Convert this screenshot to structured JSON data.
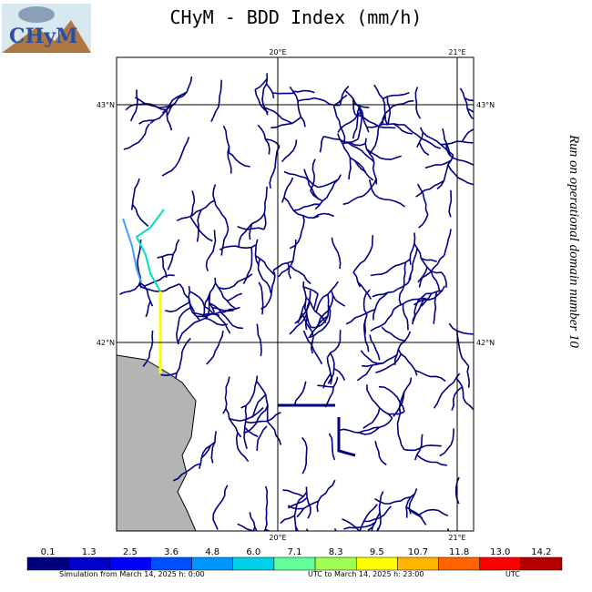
{
  "logo": {
    "text": "CHyM"
  },
  "title": "CHyM - BDD Index (mm/h)",
  "side_note": "Run on operational domain number 10",
  "map": {
    "top_labels": [
      "20°E",
      "21°E"
    ],
    "bottom_labels": [
      "20°E",
      "21°E"
    ],
    "left_labels": [
      "43°N",
      "42°N"
    ],
    "right_labels": [
      "43°N",
      "42°N"
    ]
  },
  "colorbar": {
    "labels": [
      "0.1",
      "1.3",
      "2.5",
      "3.6",
      "4.8",
      "6.0",
      "7.1",
      "8.3",
      "9.5",
      "10.7",
      "11.8",
      "13.0",
      "14.2"
    ],
    "colors": [
      "#000080",
      "#0000c8",
      "#0000ff",
      "#0050ff",
      "#0096ff",
      "#00d0e8",
      "#60ff9c",
      "#a0ff50",
      "#ffff00",
      "#ffb400",
      "#ff6400",
      "#ff0000",
      "#b40000"
    ]
  },
  "footer": {
    "from": "Simulation from March 14, 2025 h: 0:00",
    "to": "UTC to March 14, 2025 h: 23:00",
    "tz": "UTC"
  }
}
